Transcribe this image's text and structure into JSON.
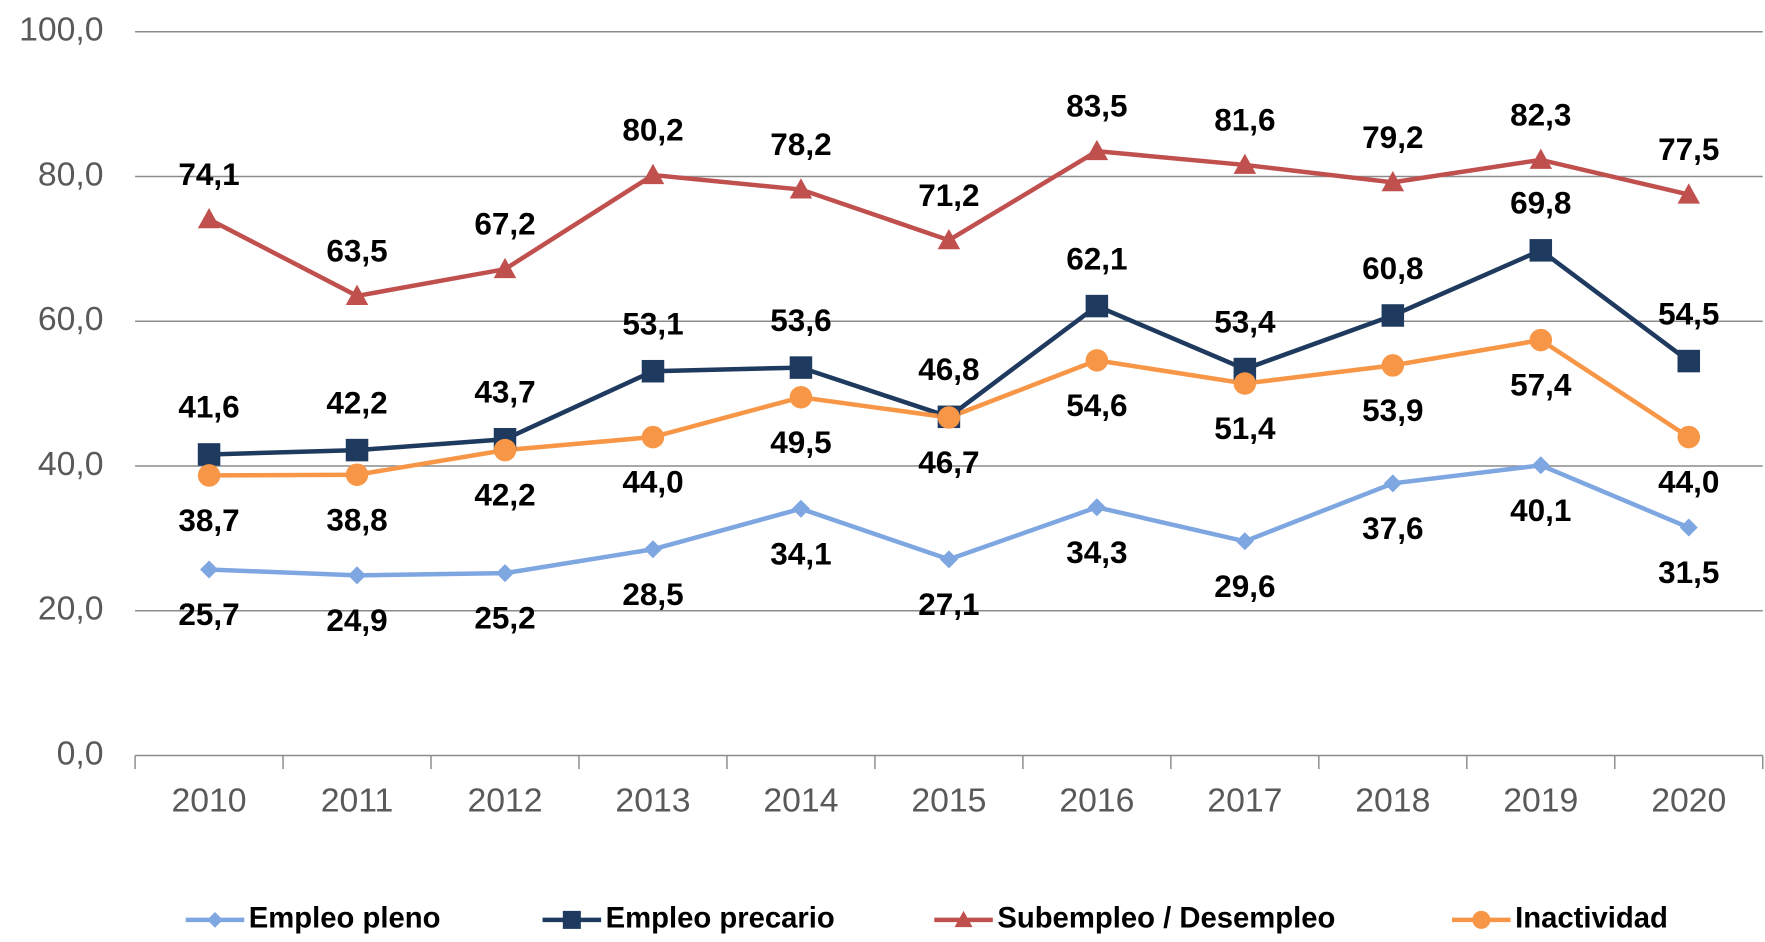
{
  "chart_data": {
    "type": "line",
    "categories": [
      "2010",
      "2011",
      "2012",
      "2013",
      "2014",
      "2015",
      "2016",
      "2017",
      "2018",
      "2019",
      "2020"
    ],
    "series": [
      {
        "name": "Empleo pleno",
        "color": "#7ea6e0",
        "marker": "diamond",
        "values": [
          25.7,
          24.9,
          25.2,
          28.5,
          34.1,
          27.1,
          34.3,
          29.6,
          37.6,
          40.1,
          31.5
        ],
        "value_labels": [
          "25,7",
          "24,9",
          "25,2",
          "28,5",
          "34,1",
          "27,1",
          "34,3",
          "29,6",
          "37,6",
          "40,1",
          "31,5"
        ]
      },
      {
        "name": "Empleo precario",
        "color": "#1f3a5f",
        "marker": "square",
        "values": [
          41.6,
          42.2,
          43.7,
          53.1,
          53.6,
          46.8,
          62.1,
          53.4,
          60.8,
          69.8,
          54.5
        ],
        "value_labels": [
          "41,6",
          "42,2",
          "43,7",
          "53,1",
          "53,6",
          "46,8",
          "62,1",
          "53,4",
          "60,8",
          "69,8",
          "54,5"
        ]
      },
      {
        "name": "Subempleo / Desempleo",
        "color": "#c0504d",
        "marker": "triangle",
        "values": [
          74.1,
          63.5,
          67.2,
          80.2,
          78.2,
          71.2,
          83.5,
          81.6,
          79.2,
          82.3,
          77.5
        ],
        "value_labels": [
          "74,1",
          "63,5",
          "67,2",
          "80,2",
          "78,2",
          "71,2",
          "83,5",
          "81,6",
          "79,2",
          "82,3",
          "77,5"
        ]
      },
      {
        "name": "Inactividad",
        "color": "#f79646",
        "marker": "circle",
        "values": [
          38.7,
          38.8,
          42.2,
          44.0,
          49.5,
          46.7,
          54.6,
          51.4,
          53.9,
          57.4,
          44.0
        ],
        "value_labels": [
          "38,7",
          "38,8",
          "42,2",
          "44,0",
          "49,5",
          "46,7",
          "54,6",
          "51,4",
          "53,9",
          "57,4",
          "44,0"
        ]
      }
    ],
    "ylim": [
      0,
      100
    ],
    "yticks": [
      {
        "value": 0,
        "label": "0,0"
      },
      {
        "value": 20,
        "label": "20,0"
      },
      {
        "value": 40,
        "label": "40,0"
      },
      {
        "value": 60,
        "label": "60,0"
      },
      {
        "value": 80,
        "label": "80,0"
      },
      {
        "value": 100,
        "label": "100,0"
      }
    ],
    "grid": true,
    "legend": "bottom"
  }
}
